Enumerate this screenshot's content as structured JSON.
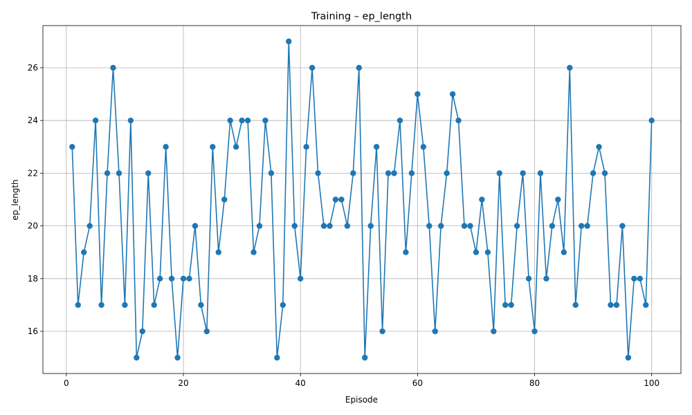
{
  "chart_data": {
    "type": "line",
    "title": "Training – ep_length",
    "xlabel": "Episode",
    "ylabel": "ep_length",
    "xlim": [
      -4,
      105
    ],
    "ylim": [
      14.4,
      27.6
    ],
    "xticks": [
      0,
      20,
      40,
      60,
      80,
      100
    ],
    "yticks": [
      16,
      18,
      20,
      22,
      24,
      26
    ],
    "grid": true,
    "color": "#1f77b4",
    "marker": "circle",
    "series": [
      {
        "x": [
          1,
          2,
          3,
          4,
          5,
          6,
          7,
          8,
          9,
          10,
          11,
          12,
          13,
          14,
          15,
          16,
          17,
          18,
          19,
          20,
          21,
          22,
          23,
          24,
          25,
          26,
          27,
          28,
          29,
          30,
          31,
          32,
          33,
          34,
          35,
          36,
          37,
          38,
          39,
          40,
          41,
          42,
          43,
          44,
          45,
          46,
          47,
          48,
          49,
          50,
          51,
          52,
          53,
          54,
          55,
          56,
          57,
          58,
          59,
          60,
          61,
          62,
          63,
          64,
          65,
          66,
          67,
          68,
          69,
          70,
          71,
          72,
          73,
          74,
          75,
          76,
          77,
          78,
          79,
          80,
          81,
          82,
          83,
          84,
          85,
          86,
          87,
          88,
          89,
          90,
          91,
          92,
          93,
          94,
          95,
          96,
          97,
          98,
          99,
          100
        ],
        "y": [
          23,
          17,
          19,
          20,
          24,
          17,
          22,
          26,
          22,
          17,
          24,
          15,
          16,
          22,
          17,
          18,
          23,
          18,
          15,
          18,
          18,
          20,
          17,
          16,
          23,
          19,
          21,
          24,
          23,
          24,
          24,
          19,
          20,
          24,
          22,
          15,
          17,
          27,
          20,
          18,
          23,
          26,
          22,
          20,
          20,
          21,
          21,
          20,
          22,
          26,
          15,
          20,
          23,
          16,
          22,
          22,
          24,
          19,
          22,
          25,
          23,
          20,
          16,
          20,
          22,
          25,
          24,
          20,
          20,
          19,
          21,
          19,
          16,
          22,
          17,
          17,
          20,
          22,
          18,
          16,
          22,
          18,
          20,
          21,
          19,
          26,
          17,
          20,
          20,
          22,
          23,
          22,
          17,
          17,
          20,
          15,
          18,
          18,
          17,
          24
        ]
      }
    ]
  }
}
